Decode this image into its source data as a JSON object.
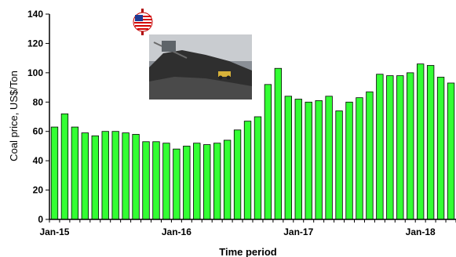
{
  "chart_data": {
    "type": "bar",
    "title": "",
    "xlabel": "Time period",
    "ylabel": "Coal price, US$/Ton",
    "ylim": [
      0,
      140
    ],
    "yticks": [
      0,
      20,
      40,
      60,
      80,
      100,
      120,
      140
    ],
    "grid": false,
    "bar_color": "#33ff33",
    "bar_edge_color": "#000000",
    "x_tick_labels": [
      {
        "label": "Jan-15",
        "index": 0
      },
      {
        "label": "Jan-16",
        "index": 12
      },
      {
        "label": "Jan-17",
        "index": 24
      },
      {
        "label": "Jan-18",
        "index": 36
      }
    ],
    "values": [
      63,
      72,
      63,
      59,
      57,
      60,
      60,
      59,
      58,
      53,
      53,
      52,
      48,
      50,
      52,
      51,
      52,
      54,
      61,
      67,
      70,
      92,
      103,
      84,
      82,
      80,
      81,
      84,
      74,
      80,
      83,
      87,
      99,
      98,
      98,
      100,
      106,
      105,
      97,
      93
    ]
  },
  "icons": {
    "dollar_flag": "us-flag-dollar-icon",
    "photo": "coal-mine-photo"
  }
}
